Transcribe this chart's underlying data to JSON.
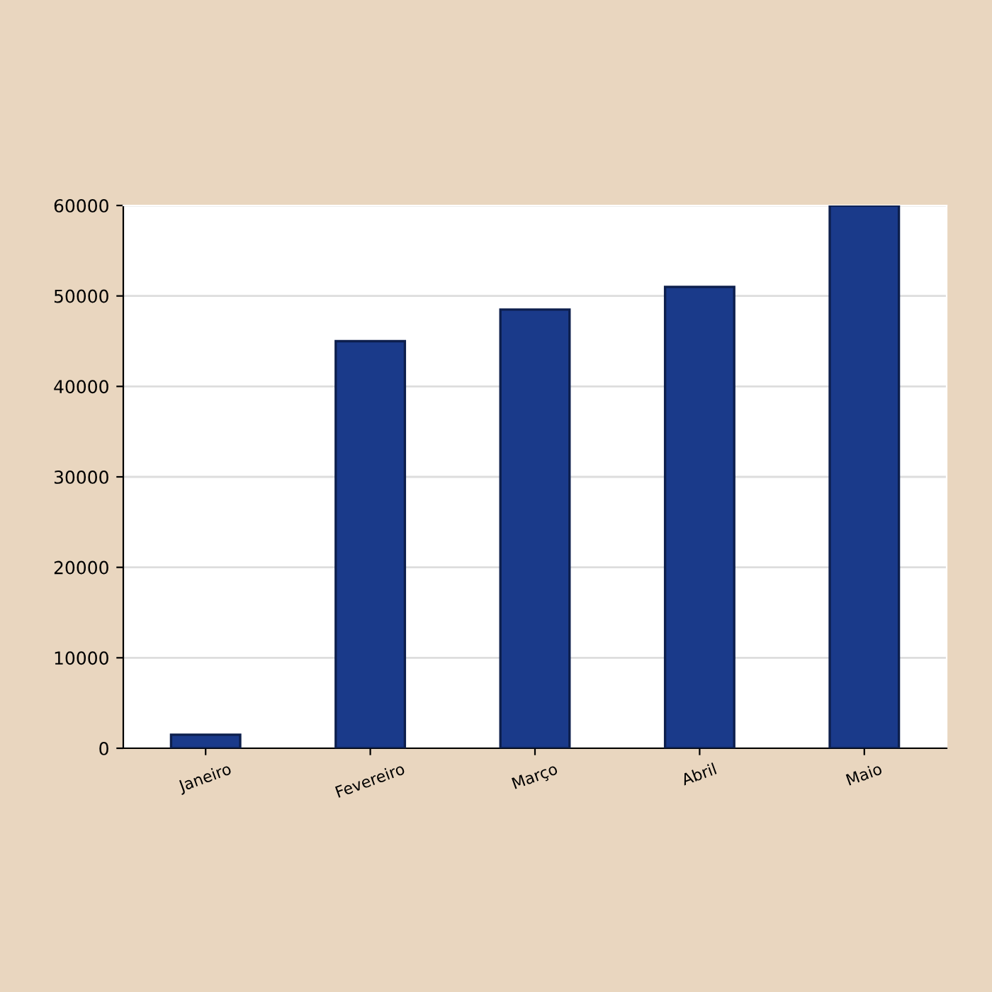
{
  "chart_data": {
    "type": "bar",
    "categories": [
      "Janeiro",
      "Fevereiro",
      "Março",
      "Abril",
      "Maio"
    ],
    "values": [
      1500,
      45000,
      48500,
      51000,
      60000
    ],
    "color": "#1a3a8a",
    "ylim": [
      0,
      60000
    ],
    "yticks": [
      0,
      10000,
      20000,
      30000,
      40000,
      50000,
      60000
    ],
    "grid": "y"
  }
}
